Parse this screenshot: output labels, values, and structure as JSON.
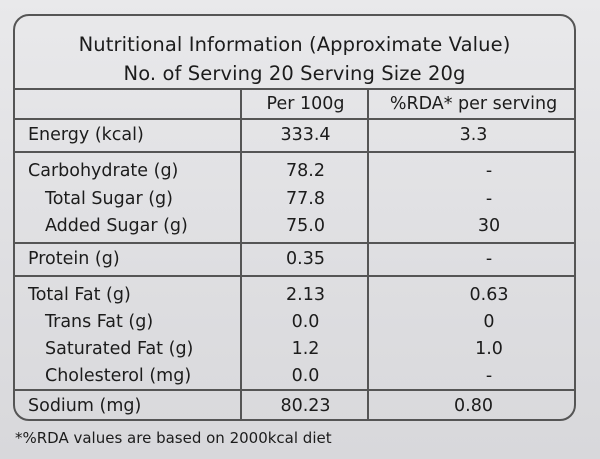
{
  "title": {
    "line1": "Nutritional Information (Approximate Value)",
    "line2": "No. of Serving 20  Serving Size 20g"
  },
  "columns": {
    "per100": "Per 100g",
    "rda": "%RDA* per serving"
  },
  "rows": [
    {
      "label": "Energy (kcal)",
      "per100": "333.4",
      "rda": "3.3"
    },
    {
      "label": "Carbohydrate (g)",
      "per100": "78.2",
      "rda": "-"
    },
    {
      "label": "Total Sugar (g)",
      "per100": "77.8",
      "rda": "-"
    },
    {
      "label": "Added Sugar (g)",
      "per100": "75.0",
      "rda": "30"
    },
    {
      "label": "Protein (g)",
      "per100": "0.35",
      "rda": "-"
    },
    {
      "label": "Total Fat (g)",
      "per100": "2.13",
      "rda": "0.63"
    },
    {
      "label": "Trans Fat (g)",
      "per100": "0.0",
      "rda": "0"
    },
    {
      "label": "Saturated Fat (g)",
      "per100": "1.2",
      "rda": "1.0"
    },
    {
      "label": "Cholesterol (mg)",
      "per100": "0.0",
      "rda": "-"
    },
    {
      "label": "Sodium (mg)",
      "per100": "80.23",
      "rda": "0.80"
    }
  ],
  "footnote": "*%RDA values are based on 2000kcal diet"
}
